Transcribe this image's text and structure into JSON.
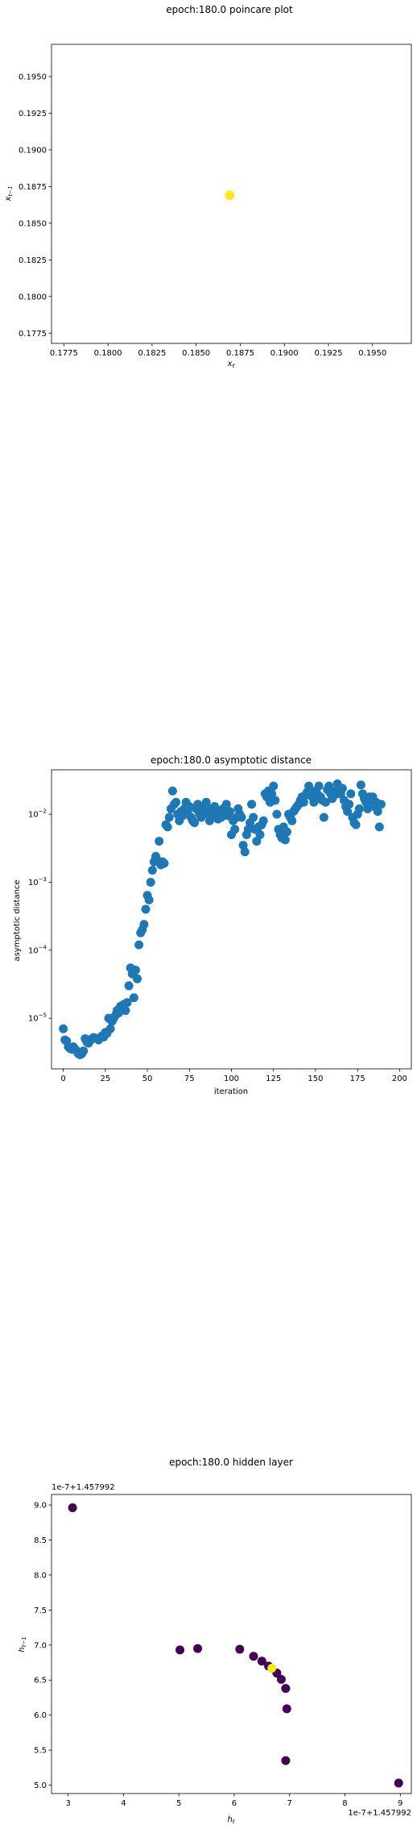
{
  "chart_data": [
    {
      "type": "scatter",
      "title": "epoch:180.0 poincare plot",
      "xlabel": "x_t",
      "ylabel": "x_{t-1}",
      "xlim": [
        0.1768,
        0.1972
      ],
      "ylim": [
        0.1768,
        0.1972
      ],
      "xticks": [
        "0.1775",
        "0.1800",
        "0.1825",
        "0.1850",
        "0.1875",
        "0.1900",
        "0.1925",
        "0.1950"
      ],
      "yticks": [
        "0.1775",
        "0.1800",
        "0.1825",
        "0.1850",
        "0.1875",
        "0.1900",
        "0.1925",
        "0.1950"
      ],
      "point_color": "#fde725",
      "points": [
        [
          0.1869,
          0.1869
        ]
      ]
    },
    {
      "type": "scatter",
      "title": "epoch:180.0 asymptotic distance",
      "xlabel": "iteration",
      "ylabel": "asymptotic distance",
      "yscale": "log",
      "xlim": [
        -7,
        207
      ],
      "ylim": [
        1.8e-06,
        0.045
      ],
      "xticks": [
        "0",
        "25",
        "50",
        "75",
        "100",
        "125",
        "150",
        "175",
        "200"
      ],
      "yticks": [
        "10^-5",
        "10^-4",
        "10^-3",
        "10^-2"
      ],
      "point_color": "#1f77b4",
      "y": [
        7e-06,
        4.8e-06,
        4.6e-06,
        3.8e-06,
        3.6e-06,
        3.5e-06,
        3.8e-06,
        3.5e-06,
        3.3e-06,
        3e-06,
        2.9e-06,
        3e-06,
        3.3e-06,
        5e-06,
        4.5e-06,
        4.3e-06,
        4.7e-06,
        5e-06,
        5.2e-06,
        5.1e-06,
        5e-06,
        4.8e-06,
        5.2e-06,
        5.5e-06,
        5.3e-06,
        6.2e-06,
        6e-06,
        1e-05,
        7e-06,
        9e-06,
        1e-05,
        1.1e-05,
        1.3e-05,
        1.2e-05,
        1.5e-05,
        1.4e-05,
        1.6e-05,
        1.3e-05,
        1.7e-05,
        3e-05,
        5.5e-05,
        4.5e-05,
        2e-05,
        5.1e-05,
        3.8e-05,
        0.00012,
        0.00018,
        0.0002,
        0.00024,
        0.0004,
        0.00064,
        0.00055,
        0.001,
        0.0015,
        0.002,
        0.0024,
        0.0021,
        0.004,
        0.0018,
        0.002,
        0.0019,
        0.007,
        0.0065,
        0.009,
        0.012,
        0.022,
        0.014,
        0.015,
        0.01,
        0.008,
        0.011,
        0.0095,
        0.012,
        0.015,
        0.011,
        0.013,
        0.009,
        0.008,
        0.0075,
        0.012,
        0.014,
        0.01,
        0.009,
        0.013,
        0.011,
        0.015,
        0.01,
        0.008,
        0.012,
        0.01,
        0.013,
        0.009,
        0.0085,
        0.011,
        0.009,
        0.012,
        0.01,
        0.014,
        0.0095,
        0.011,
        0.005,
        0.008,
        0.006,
        0.009,
        0.012,
        0.01,
        0.009,
        0.0035,
        0.0028,
        0.005,
        0.006,
        0.0075,
        0.014,
        0.009,
        0.006,
        0.004,
        0.0065,
        0.005,
        0.007,
        0.008,
        0.02,
        0.018,
        0.022,
        0.015,
        0.02,
        0.026,
        0.016,
        0.01,
        0.006,
        0.005,
        0.0045,
        0.0065,
        0.0042,
        0.0055,
        0.01,
        0.009,
        0.008,
        0.011,
        0.012,
        0.013,
        0.014,
        0.016,
        0.018,
        0.015,
        0.019,
        0.021,
        0.026,
        0.02,
        0.018,
        0.015,
        0.022,
        0.02,
        0.026,
        0.018,
        0.016,
        0.009,
        0.015,
        0.023,
        0.026,
        0.02,
        0.017,
        0.019,
        0.022,
        0.028,
        0.02,
        0.02,
        0.024,
        0.016,
        0.013,
        0.011,
        0.014,
        0.02,
        0.009,
        0.0075,
        0.007,
        0.01,
        0.012,
        0.027,
        0.02,
        0.017,
        0.015,
        0.012,
        0.018,
        0.016,
        0.018,
        0.013,
        0.015,
        0.011,
        0.0065,
        0.014
      ]
    },
    {
      "type": "scatter",
      "title": "epoch:180.0 hidden layer",
      "xlabel": "h_t",
      "ylabel": "h_{t-1}",
      "offset_text": "1e-7+1.457992",
      "xlim": [
        2.7,
        9.2
      ],
      "ylim": [
        4.88,
        9.15
      ],
      "xticks": [
        "3",
        "4",
        "5",
        "6",
        "7",
        "8",
        "9"
      ],
      "yticks": [
        "5.0",
        "5.5",
        "6.0",
        "6.5",
        "7.0",
        "7.5",
        "8.0",
        "8.5",
        "9.0"
      ],
      "point_color": "#440154",
      "highlight_color": "#fde725",
      "points": [
        [
          3.08,
          8.96
        ],
        [
          5.02,
          6.93
        ],
        [
          5.34,
          6.95
        ],
        [
          6.1,
          6.94
        ],
        [
          6.35,
          6.84
        ],
        [
          6.5,
          6.77
        ],
        [
          6.62,
          6.7
        ],
        [
          6.77,
          6.6
        ],
        [
          6.85,
          6.51
        ],
        [
          6.93,
          6.38
        ],
        [
          6.95,
          6.09
        ],
        [
          6.93,
          5.35
        ],
        [
          8.97,
          5.03
        ]
      ],
      "highlight": [
        6.68,
        6.67
      ]
    }
  ]
}
